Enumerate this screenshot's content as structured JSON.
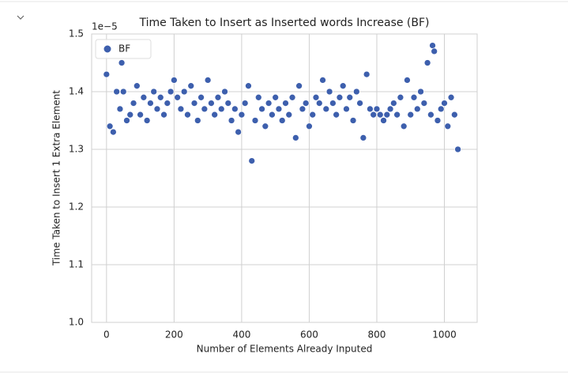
{
  "chart_data": {
    "type": "scatter",
    "title": "Time Taken to Insert as Inserted words Increase (BF)",
    "x_label": "Number of Elements Already Inputed",
    "y_label": "Time Taken to Insert 1 Extra Element",
    "y_offset_label": "1e−5",
    "legend": "upper left",
    "grid": true,
    "xlim": [
      -44,
      1097
    ],
    "ylim": [
      1.0,
      1.5
    ],
    "xticks": [
      0,
      200,
      400,
      600,
      800,
      1000
    ],
    "yticks": [
      {
        "value": 1,
        "label": "1.0"
      },
      1.1,
      1.2,
      1.3,
      1.4,
      1.5
    ],
    "series": [
      {
        "name": "BF",
        "color": "#3d5fad",
        "x": [
          0,
          10,
          20,
          30,
          40,
          45,
          50,
          60,
          70,
          80,
          90,
          100,
          110,
          120,
          130,
          140,
          150,
          160,
          170,
          180,
          190,
          200,
          210,
          220,
          230,
          240,
          250,
          260,
          270,
          280,
          290,
          300,
          310,
          320,
          330,
          340,
          350,
          360,
          370,
          380,
          390,
          400,
          410,
          420,
          430,
          440,
          450,
          460,
          470,
          480,
          490,
          500,
          510,
          520,
          530,
          540,
          550,
          560,
          570,
          580,
          590,
          600,
          610,
          620,
          630,
          640,
          650,
          660,
          670,
          680,
          690,
          700,
          710,
          720,
          730,
          740,
          750,
          760,
          770,
          780,
          790,
          800,
          810,
          820,
          830,
          840,
          850,
          860,
          870,
          880,
          890,
          900,
          910,
          920,
          930,
          940,
          950,
          960,
          965,
          970,
          980,
          990,
          1000,
          1010,
          1020,
          1030,
          1040
        ],
        "values": [
          1.43,
          1.34,
          1.33,
          1.4,
          1.37,
          1.45,
          1.4,
          1.35,
          1.36,
          1.38,
          1.41,
          1.36,
          1.39,
          1.35,
          1.38,
          1.4,
          1.37,
          1.39,
          1.36,
          1.38,
          1.4,
          1.42,
          1.39,
          1.37,
          1.4,
          1.36,
          1.41,
          1.38,
          1.35,
          1.39,
          1.37,
          1.42,
          1.38,
          1.36,
          1.39,
          1.37,
          1.4,
          1.38,
          1.35,
          1.37,
          1.33,
          1.36,
          1.38,
          1.41,
          1.28,
          1.35,
          1.39,
          1.37,
          1.34,
          1.38,
          1.36,
          1.39,
          1.37,
          1.35,
          1.38,
          1.36,
          1.39,
          1.32,
          1.41,
          1.37,
          1.38,
          1.34,
          1.36,
          1.39,
          1.38,
          1.42,
          1.37,
          1.4,
          1.38,
          1.36,
          1.39,
          1.41,
          1.37,
          1.39,
          1.35,
          1.4,
          1.38,
          1.32,
          1.43,
          1.37,
          1.36,
          1.37,
          1.36,
          1.35,
          1.36,
          1.37,
          1.38,
          1.36,
          1.39,
          1.34,
          1.42,
          1.36,
          1.39,
          1.37,
          1.4,
          1.38,
          1.45,
          1.36,
          1.48,
          1.47,
          1.35,
          1.37,
          1.38,
          1.34,
          1.39,
          1.36,
          1.3
        ]
      }
    ]
  }
}
